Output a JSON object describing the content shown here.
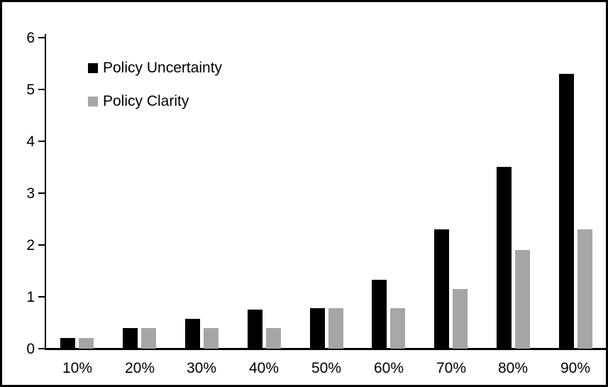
{
  "chart_data": {
    "type": "bar",
    "title": "",
    "xlabel": "",
    "ylabel": "",
    "categories": [
      "10%",
      "20%",
      "30%",
      "40%",
      "50%",
      "60%",
      "70%",
      "80%",
      "90%"
    ],
    "series": [
      {
        "name": "Policy Uncertainty",
        "color": "#000000",
        "values": [
          0.2,
          0.4,
          0.57,
          0.76,
          0.78,
          1.33,
          2.3,
          3.5,
          5.3
        ]
      },
      {
        "name": "Policy Clarity",
        "color": "#a6a6a6",
        "values": [
          0.2,
          0.4,
          0.4,
          0.4,
          0.78,
          0.78,
          1.15,
          1.9,
          2.3
        ]
      }
    ],
    "ylim": [
      0,
      6
    ],
    "yticks": [
      0,
      1,
      2,
      3,
      4,
      5,
      6
    ],
    "grid": false,
    "legend_position": "top-left",
    "frame_color": "#000000",
    "background_color": "#ffffff"
  }
}
